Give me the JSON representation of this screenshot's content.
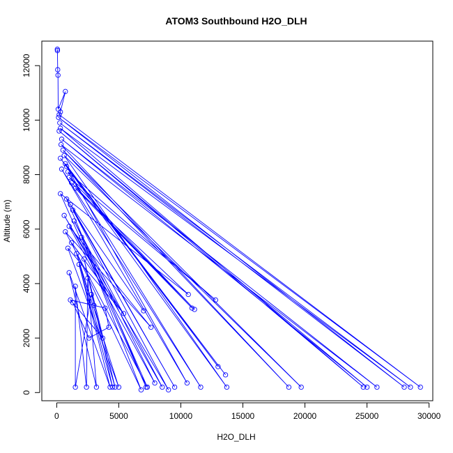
{
  "chart_data": {
    "type": "line",
    "title": "ATOM3 Southbound H2O_DLH",
    "xlabel": "H2O_DLH",
    "ylabel": "Altitude (m)",
    "xlim": [
      -1200,
      30300
    ],
    "ylim": [
      -300,
      12900
    ],
    "x_ticks": [
      0,
      5000,
      10000,
      15000,
      20000,
      25000,
      30000
    ],
    "y_ticks": [
      0,
      2000,
      4000,
      6000,
      8000,
      10000,
      12000
    ],
    "line_color": "#0000ff",
    "marker": "open-circle",
    "grid": false,
    "legend": "none",
    "series": [
      {
        "x": [
          50,
          60,
          80,
          100,
          120,
          700,
          300,
          200,
          29300,
          150,
          28000,
          250,
          28500,
          300,
          24700,
          200,
          25000,
          400,
          25800,
          350,
          18700,
          500,
          19700,
          600,
          13700,
          300,
          13600,
          700,
          13000,
          800,
          10500,
          400,
          11600,
          900,
          12800,
          1000,
          11100,
          1200,
          10900,
          1500,
          10600,
          300,
          7200,
          800,
          7000,
          1100,
          9500,
          1300,
          9000,
          600,
          8500,
          1400,
          7900,
          1000,
          7600,
          700,
          7300,
          2000,
          6800,
          1200,
          5400,
          900,
          5000,
          1600,
          4700,
          2200,
          4500,
          1800,
          4300,
          1000,
          3200,
          2500,
          2400,
          1500,
          1500,
          2800,
          3700,
          1100,
          3000,
          3900,
          4200,
          2600,
          1300
        ],
        "y": [
          12600,
          12550,
          11850,
          11650,
          10400,
          11050,
          10300,
          10200,
          200,
          10100,
          200,
          9900,
          200,
          9700,
          200,
          9600,
          200,
          9300,
          200,
          9100,
          200,
          8900,
          200,
          8700,
          200,
          8600,
          650,
          8400,
          950,
          8300,
          350,
          8200,
          200,
          8100,
          3400,
          7900,
          3050,
          7700,
          3100,
          7500,
          3600,
          7300,
          200,
          7100,
          3000,
          6900,
          200,
          6700,
          100,
          6500,
          200,
          6300,
          350,
          6100,
          2400,
          5900,
          200,
          5700,
          100,
          5500,
          2900,
          5300,
          200,
          5100,
          200,
          4900,
          200,
          4700,
          200,
          4400,
          200,
          4200,
          200,
          3900,
          200,
          3600,
          2000,
          3400,
          3200,
          3100,
          2400,
          2000,
          3300
        ]
      }
    ]
  }
}
